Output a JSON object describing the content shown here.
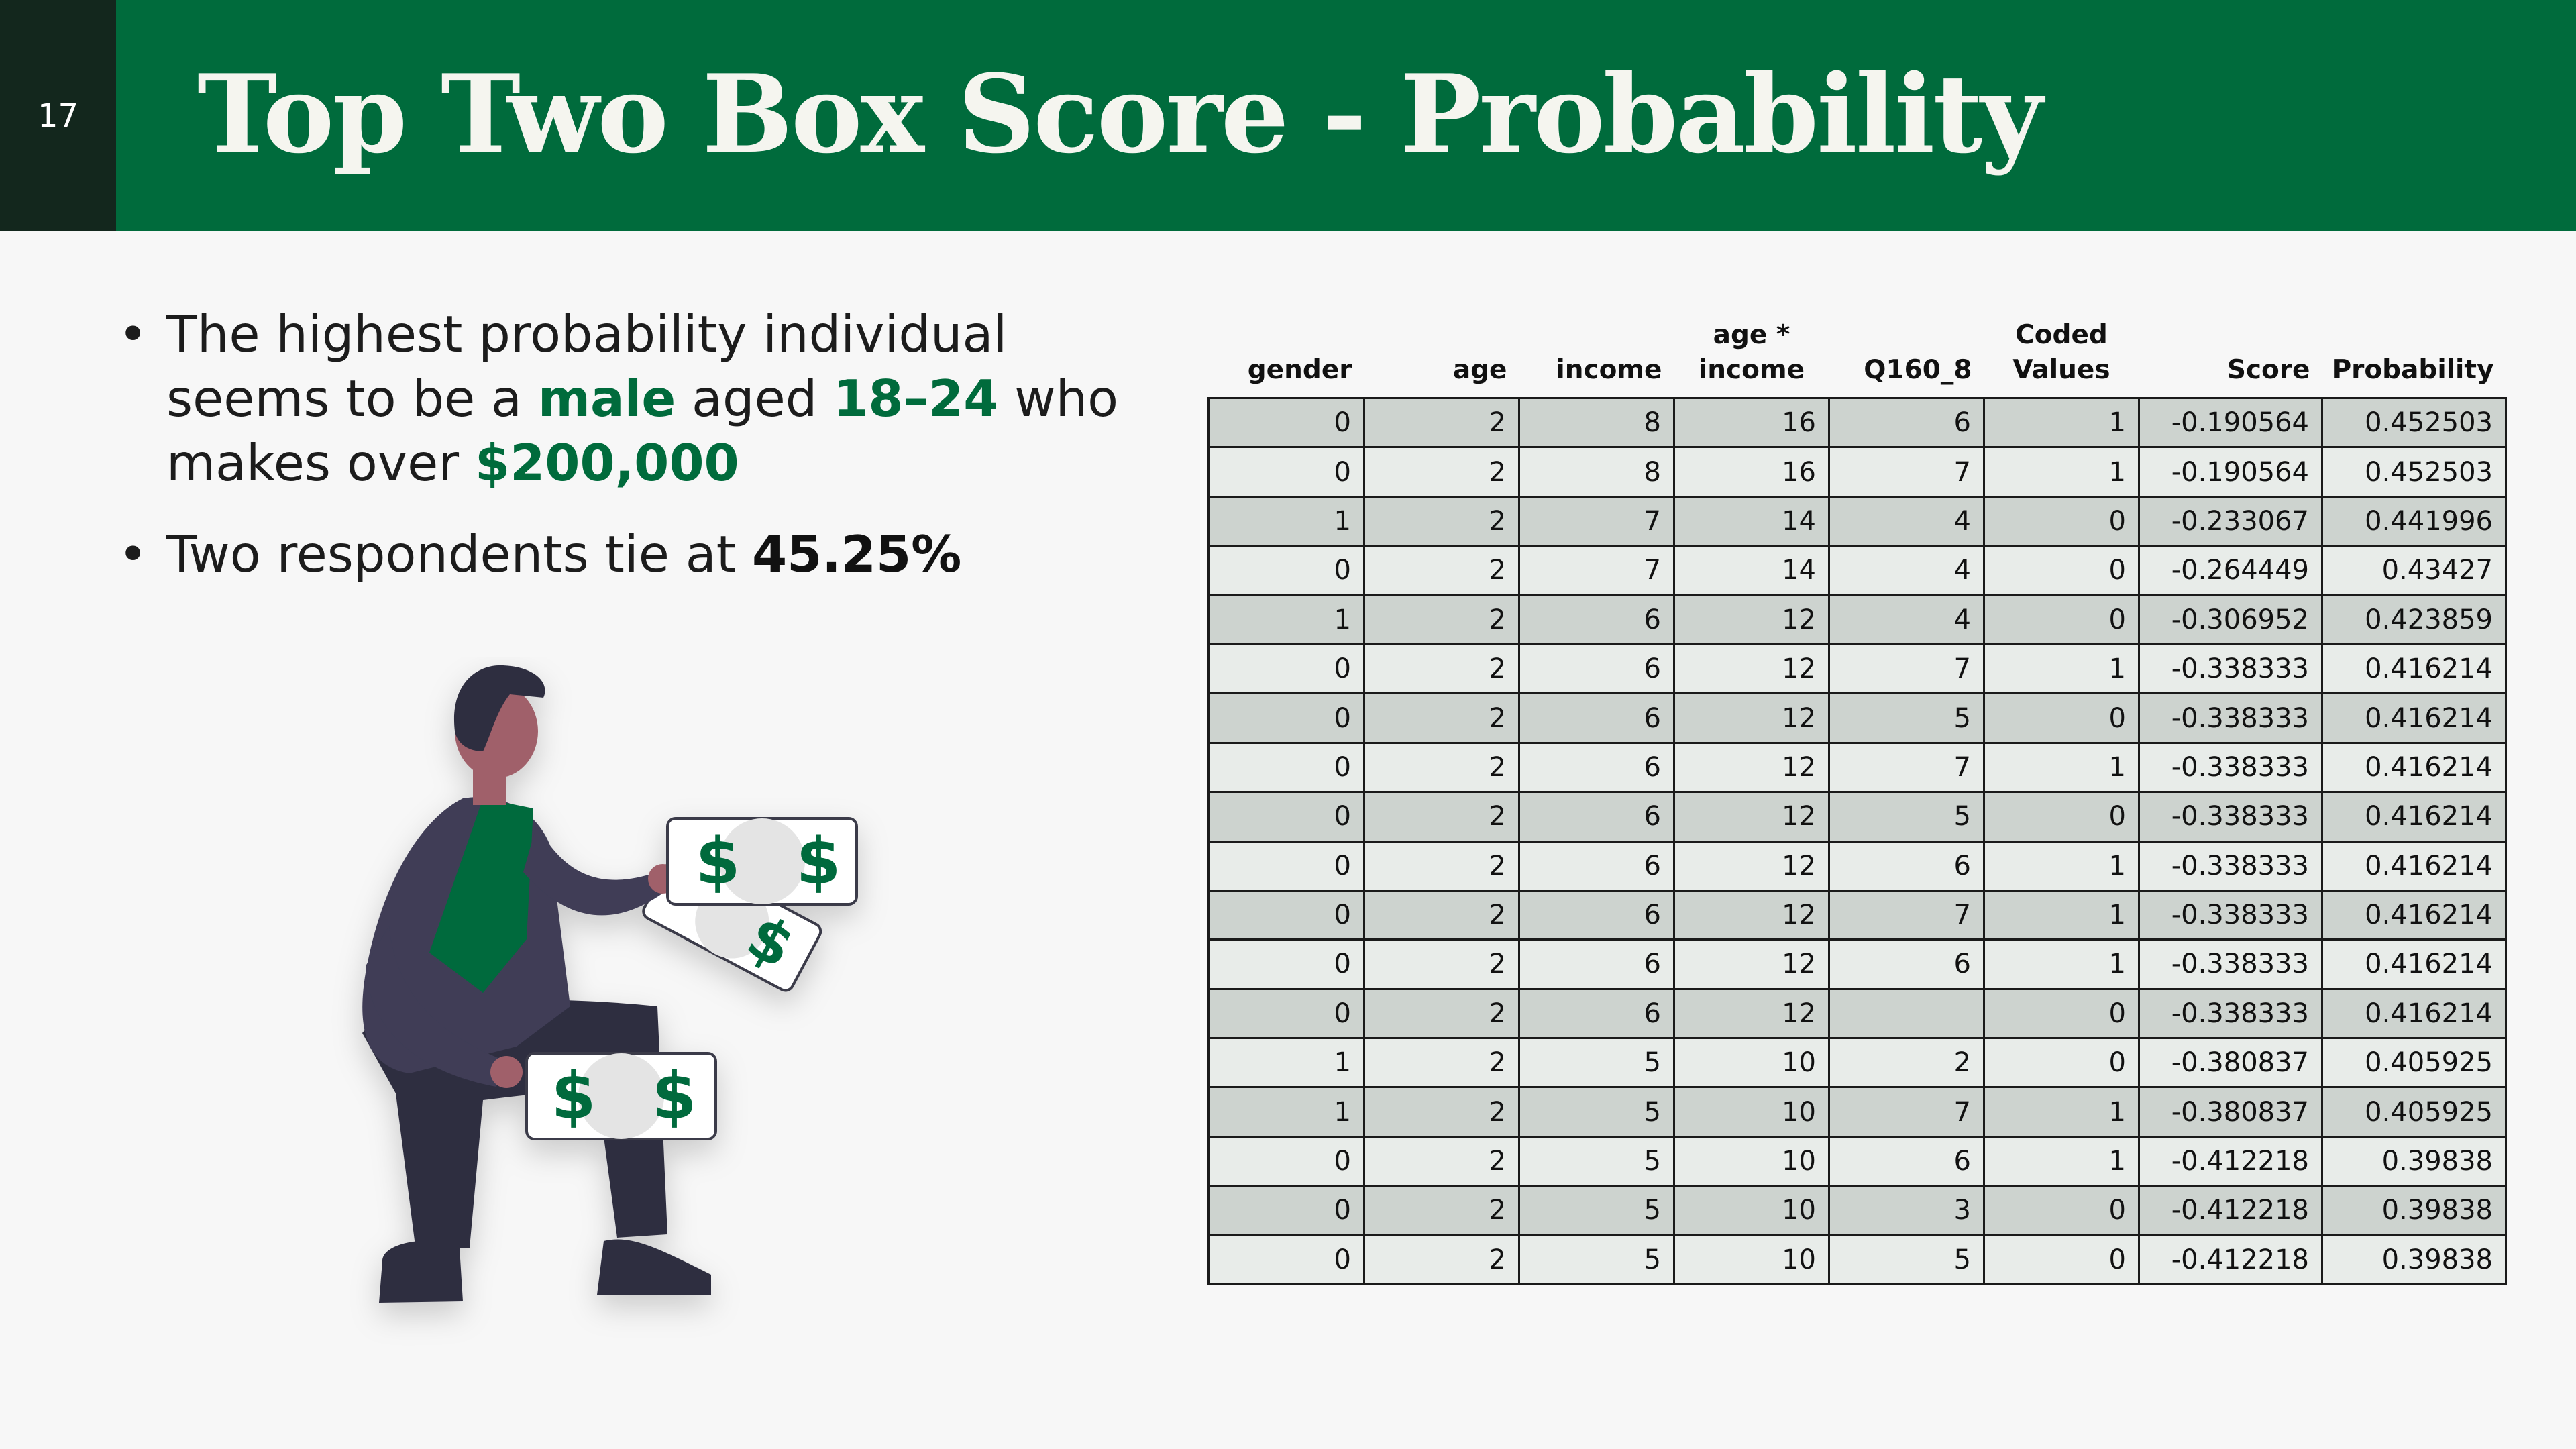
{
  "slide_number": "17",
  "title": "Top Two Box Score - Probability",
  "bullets": [
    {
      "segments": [
        {
          "text": "The highest probability individual seems to be a ",
          "style": "plain"
        },
        {
          "text": "male",
          "style": "green-bold"
        },
        {
          "text": " aged ",
          "style": "plain"
        },
        {
          "text": "18–24",
          "style": "green-bold"
        },
        {
          "text": " who makes over ",
          "style": "plain"
        },
        {
          "text": "$200,000",
          "style": "green-bold"
        }
      ]
    },
    {
      "segments": [
        {
          "text": "Two respondents tie at ",
          "style": "plain"
        },
        {
          "text": "45.25%",
          "style": "black-bold"
        }
      ]
    }
  ],
  "illustration": {
    "icon": "man-holding-money-icon",
    "bill_symbol": "$"
  },
  "table": {
    "headers": [
      {
        "lines": [
          "gender"
        ]
      },
      {
        "lines": [
          "age"
        ]
      },
      {
        "lines": [
          "income"
        ]
      },
      {
        "lines": [
          "age *",
          "income"
        ]
      },
      {
        "lines": [
          "Q160_8"
        ]
      },
      {
        "lines": [
          "Coded",
          "Values"
        ]
      },
      {
        "lines": [
          "Score"
        ]
      },
      {
        "lines": [
          "Probability"
        ]
      }
    ],
    "rows": [
      [
        "0",
        "2",
        "8",
        "16",
        "6",
        "1",
        "-0.190564",
        "0.452503"
      ],
      [
        "0",
        "2",
        "8",
        "16",
        "7",
        "1",
        "-0.190564",
        "0.452503"
      ],
      [
        "1",
        "2",
        "7",
        "14",
        "4",
        "0",
        "-0.233067",
        "0.441996"
      ],
      [
        "0",
        "2",
        "7",
        "14",
        "4",
        "0",
        "-0.264449",
        "0.43427"
      ],
      [
        "1",
        "2",
        "6",
        "12",
        "4",
        "0",
        "-0.306952",
        "0.423859"
      ],
      [
        "0",
        "2",
        "6",
        "12",
        "7",
        "1",
        "-0.338333",
        "0.416214"
      ],
      [
        "0",
        "2",
        "6",
        "12",
        "5",
        "0",
        "-0.338333",
        "0.416214"
      ],
      [
        "0",
        "2",
        "6",
        "12",
        "7",
        "1",
        "-0.338333",
        "0.416214"
      ],
      [
        "0",
        "2",
        "6",
        "12",
        "5",
        "0",
        "-0.338333",
        "0.416214"
      ],
      [
        "0",
        "2",
        "6",
        "12",
        "6",
        "1",
        "-0.338333",
        "0.416214"
      ],
      [
        "0",
        "2",
        "6",
        "12",
        "7",
        "1",
        "-0.338333",
        "0.416214"
      ],
      [
        "0",
        "2",
        "6",
        "12",
        "6",
        "1",
        "-0.338333",
        "0.416214"
      ],
      [
        "0",
        "2",
        "6",
        "12",
        "",
        "0",
        "-0.338333",
        "0.416214"
      ],
      [
        "1",
        "2",
        "5",
        "10",
        "2",
        "0",
        "-0.380837",
        "0.405925"
      ],
      [
        "1",
        "2",
        "5",
        "10",
        "7",
        "1",
        "-0.380837",
        "0.405925"
      ],
      [
        "0",
        "2",
        "5",
        "10",
        "6",
        "1",
        "-0.412218",
        "0.39838"
      ],
      [
        "0",
        "2",
        "5",
        "10",
        "3",
        "0",
        "-0.412218",
        "0.39838"
      ],
      [
        "0",
        "2",
        "5",
        "10",
        "5",
        "0",
        "-0.412218",
        "0.39838"
      ]
    ]
  }
}
